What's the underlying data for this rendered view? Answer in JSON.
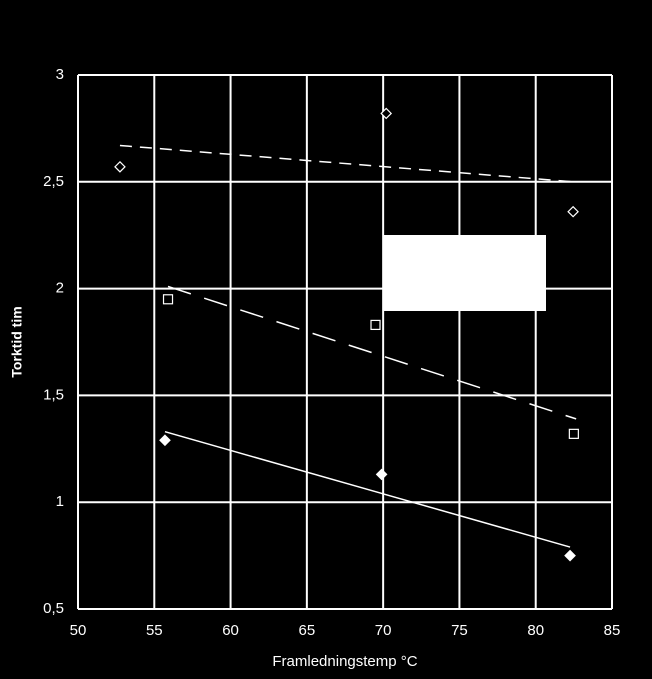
{
  "chart_data": {
    "type": "scatter",
    "xlabel": "Framledningstemp  °C",
    "ylabel": "Torktid tim",
    "xlim": [
      50,
      85
    ],
    "xticks": [
      50,
      55,
      60,
      65,
      70,
      75,
      80,
      85
    ],
    "ylim": [
      0.5,
      3
    ],
    "yticks": [
      {
        "value": 0.5,
        "label": "0,5"
      },
      1,
      {
        "value": 1.5,
        "label": "1,5"
      },
      2,
      {
        "value": 2.5,
        "label": "2,5"
      },
      3
    ],
    "grid": true,
    "color": "#ffffff",
    "series": [
      {
        "marker": "diamond-open",
        "x": [
          52.75,
          70.2,
          82.45
        ],
        "values": [
          2.57,
          2.82,
          2.36
        ]
      },
      {
        "marker": "square-open",
        "x": [
          55.9,
          69.5,
          82.5
        ],
        "values": [
          1.95,
          1.83,
          1.32
        ]
      },
      {
        "marker": "diamond-filled",
        "x": [
          55.7,
          69.9,
          82.25
        ],
        "values": [
          1.29,
          1.13,
          0.75
        ]
      }
    ],
    "trendlines": [
      {
        "dash": "12 8",
        "x": [
          52.75,
          82.45
        ],
        "values": [
          2.67,
          2.5
        ]
      },
      {
        "dash": "24 14",
        "x": [
          55.9,
          82.65
        ],
        "values": [
          2.01,
          1.39
        ]
      },
      {
        "dash": "none",
        "x": [
          55.7,
          82.25
        ],
        "values": [
          1.33,
          0.79
        ]
      }
    ]
  }
}
